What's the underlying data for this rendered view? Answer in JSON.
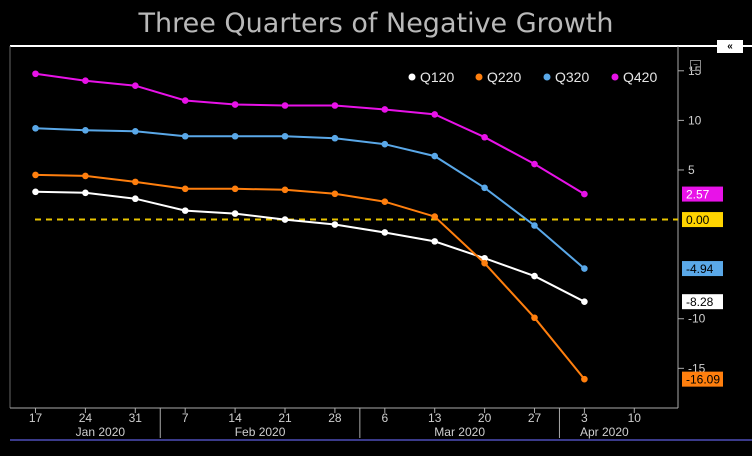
{
  "chart_data": {
    "type": "line",
    "title": "Three Quarters of Negative Growth",
    "x_ticks": [
      "17",
      "24",
      "31",
      "7",
      "14",
      "21",
      "28",
      "6",
      "13",
      "20",
      "27",
      "3",
      "10"
    ],
    "month_labels": [
      "Jan 2020",
      "Feb 2020",
      "Mar 2020",
      "Apr 2020"
    ],
    "y_ticks": [
      15,
      10,
      5,
      -10,
      -15
    ],
    "ylim": [
      -19,
      17.5
    ],
    "reference_line": 0,
    "reference_label": "0.00",
    "legend_position": "top-right",
    "series": [
      {
        "name": "Q120",
        "color": "#ffffff",
        "last_label": "-8.28",
        "values": [
          2.8,
          2.7,
          2.1,
          0.9,
          0.6,
          0.0,
          -0.5,
          -1.3,
          -2.2,
          -3.9,
          -5.7,
          -8.28
        ]
      },
      {
        "name": "Q220",
        "color": "#ff7f0e",
        "last_label": "-16.09",
        "values": [
          4.5,
          4.4,
          3.8,
          3.1,
          3.1,
          3.0,
          2.6,
          1.8,
          0.3,
          -4.4,
          -9.9,
          -16.09
        ]
      },
      {
        "name": "Q320",
        "color": "#5aa8e8",
        "last_label": "-4.94",
        "values": [
          9.2,
          9.0,
          8.9,
          8.4,
          8.4,
          8.4,
          8.2,
          7.6,
          6.4,
          3.2,
          -0.6,
          -4.94
        ]
      },
      {
        "name": "Q420",
        "color": "#e812e8",
        "last_label": "2.57",
        "values": [
          14.7,
          14.0,
          13.5,
          12.0,
          11.6,
          11.5,
          11.5,
          11.1,
          10.6,
          8.3,
          5.6,
          2.57
        ]
      }
    ]
  },
  "ui": {
    "collapse_glyph": "«",
    "options_glyph": "−"
  }
}
